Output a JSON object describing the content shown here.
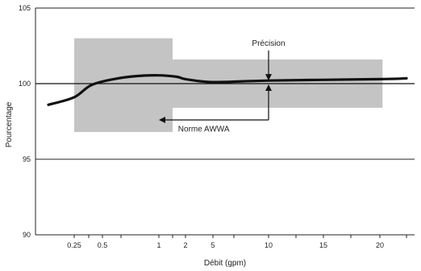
{
  "chart_data": {
    "type": "line",
    "title": "",
    "xlabel": "Débit (gpm)",
    "ylabel": "Pourcentage",
    "x_tick_labels": [
      "0.25",
      "0.5",
      "1",
      "2",
      "5",
      "10",
      "15",
      "20"
    ],
    "y_ticks": [
      90,
      95,
      100,
      105
    ],
    "ylim": [
      90,
      105
    ],
    "grid": "horizontal",
    "reference_line": 100,
    "accuracy_bands": [
      {
        "x_range": [
          "0.25",
          "1.25"
        ],
        "y_range": [
          96.8,
          103.0
        ]
      },
      {
        "x_range": [
          "1.25",
          "20.5"
        ],
        "y_range": [
          98.4,
          101.6
        ]
      }
    ],
    "series": [
      {
        "values": [
          {
            "x": "0.1",
            "y": 98.6
          },
          {
            "x": "0.25",
            "y": 99.1
          },
          {
            "x": "0.4",
            "y": 99.9
          },
          {
            "x": "0.6",
            "y": 100.3
          },
          {
            "x": "0.8",
            "y": 100.5
          },
          {
            "x": "1",
            "y": 100.55
          },
          {
            "x": "1.5",
            "y": 100.45
          },
          {
            "x": "2",
            "y": 100.3
          },
          {
            "x": "5",
            "y": 100.1
          },
          {
            "x": "10",
            "y": 100.2
          },
          {
            "x": "20",
            "y": 100.3
          },
          {
            "x": "25",
            "y": 100.35
          }
        ]
      }
    ],
    "annotations": [
      {
        "text": "Précision",
        "target_x": "10",
        "target_y": 100.1
      },
      {
        "text": "Norme AWWA",
        "target_x": "1",
        "target_y": 97.6
      }
    ]
  }
}
